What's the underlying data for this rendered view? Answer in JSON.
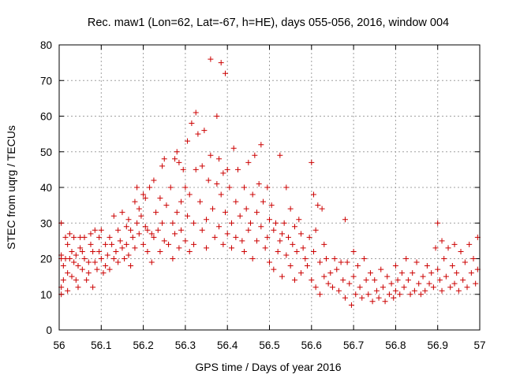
{
  "chart_data": {
    "type": "scatter",
    "title": "Rec. maw1 (Lon=62, Lat=-67, h=HE), days 055-056, 2016, window 004",
    "xlabel": "GPS time / Days of year 2016",
    "ylabel": "STEC from uqrg / TECUs",
    "xlim": [
      56,
      57
    ],
    "ylim": [
      0,
      80
    ],
    "x_ticks": [
      "56",
      "56.1",
      "56.2",
      "56.3",
      "56.4",
      "56.5",
      "56.6",
      "56.7",
      "56.8",
      "56.9",
      "57"
    ],
    "y_ticks": [
      "0",
      "10",
      "20",
      "30",
      "40",
      "50",
      "60",
      "70",
      "80"
    ],
    "grid": true,
    "legend": "none",
    "marker": "plus",
    "marker_color": "#cc0000",
    "series": [
      {
        "points": [
          [
            56.005,
            30
          ],
          [
            56.005,
            21
          ],
          [
            56.005,
            20
          ],
          [
            56.005,
            12
          ],
          [
            56.005,
            10
          ],
          [
            56.01,
            18
          ],
          [
            56.01,
            14
          ],
          [
            56.015,
            26
          ],
          [
            56.015,
            20
          ],
          [
            56.02,
            24
          ],
          [
            56.02,
            16
          ],
          [
            56.02,
            11
          ],
          [
            56.025,
            27
          ],
          [
            56.025,
            20
          ],
          [
            56.03,
            22
          ],
          [
            56.03,
            15
          ],
          [
            56.035,
            26
          ],
          [
            56.035,
            19
          ],
          [
            56.04,
            21
          ],
          [
            56.04,
            14
          ],
          [
            56.045,
            18
          ],
          [
            56.045,
            12
          ],
          [
            56.05,
            26
          ],
          [
            56.05,
            23
          ],
          [
            56.055,
            22
          ],
          [
            56.055,
            17
          ],
          [
            56.06,
            26
          ],
          [
            56.06,
            20
          ],
          [
            56.065,
            14
          ],
          [
            56.07,
            19
          ],
          [
            56.07,
            16
          ],
          [
            56.075,
            27
          ],
          [
            56.075,
            24
          ],
          [
            56.08,
            22
          ],
          [
            56.08,
            12
          ],
          [
            56.085,
            28
          ],
          [
            56.085,
            19
          ],
          [
            56.09,
            17
          ],
          [
            56.095,
            26
          ],
          [
            56.095,
            22
          ],
          [
            56.1,
            28
          ],
          [
            56.1,
            20
          ],
          [
            56.105,
            16
          ],
          [
            56.11,
            24
          ],
          [
            56.11,
            18
          ],
          [
            56.115,
            21
          ],
          [
            56.12,
            26
          ],
          [
            56.12,
            17
          ],
          [
            56.125,
            24
          ],
          [
            56.13,
            32
          ],
          [
            56.13,
            20
          ],
          [
            56.135,
            22
          ],
          [
            56.14,
            28
          ],
          [
            56.14,
            19
          ],
          [
            56.145,
            25
          ],
          [
            56.15,
            33
          ],
          [
            56.15,
            23
          ],
          [
            56.155,
            20
          ],
          [
            56.16,
            29
          ],
          [
            56.16,
            24
          ],
          [
            56.165,
            31
          ],
          [
            56.165,
            21
          ],
          [
            56.17,
            28
          ],
          [
            56.17,
            18
          ],
          [
            56.175,
            26
          ],
          [
            56.18,
            36
          ],
          [
            56.18,
            23
          ],
          [
            56.185,
            40
          ],
          [
            56.185,
            30
          ],
          [
            56.19,
            34
          ],
          [
            56.19,
            27
          ],
          [
            56.195,
            32
          ],
          [
            56.2,
            38
          ],
          [
            56.2,
            24
          ],
          [
            56.205,
            37
          ],
          [
            56.205,
            29
          ],
          [
            56.21,
            28
          ],
          [
            56.21,
            22
          ],
          [
            56.215,
            40
          ],
          [
            56.22,
            27
          ],
          [
            56.22,
            19
          ],
          [
            56.225,
            42
          ],
          [
            56.225,
            26
          ],
          [
            56.23,
            33
          ],
          [
            56.235,
            28
          ],
          [
            56.24,
            37
          ],
          [
            56.24,
            22
          ],
          [
            56.245,
            46
          ],
          [
            56.245,
            30
          ],
          [
            56.25,
            48
          ],
          [
            56.25,
            25
          ],
          [
            56.255,
            35
          ],
          [
            56.26,
            24
          ],
          [
            56.265,
            40
          ],
          [
            56.27,
            30
          ],
          [
            56.27,
            20
          ],
          [
            56.275,
            48
          ],
          [
            56.275,
            27
          ],
          [
            56.28,
            50
          ],
          [
            56.28,
            33
          ],
          [
            56.285,
            47
          ],
          [
            56.285,
            23
          ],
          [
            56.29,
            36
          ],
          [
            56.29,
            28
          ],
          [
            56.295,
            45
          ],
          [
            56.3,
            40
          ],
          [
            56.3,
            25
          ],
          [
            56.305,
            53
          ],
          [
            56.305,
            32
          ],
          [
            56.31,
            38
          ],
          [
            56.31,
            22
          ],
          [
            56.315,
            58
          ],
          [
            56.32,
            30
          ],
          [
            56.32,
            24
          ],
          [
            56.325,
            61
          ],
          [
            56.325,
            45
          ],
          [
            56.33,
            55
          ],
          [
            56.335,
            36
          ],
          [
            56.34,
            46
          ],
          [
            56.34,
            28
          ],
          [
            56.345,
            56
          ],
          [
            56.35,
            31
          ],
          [
            56.35,
            23
          ],
          [
            56.355,
            42
          ],
          [
            56.36,
            76
          ],
          [
            56.36,
            49
          ],
          [
            56.365,
            34
          ],
          [
            56.37,
            26
          ],
          [
            56.375,
            60
          ],
          [
            56.375,
            41
          ],
          [
            56.38,
            48
          ],
          [
            56.38,
            29
          ],
          [
            56.385,
            75
          ],
          [
            56.385,
            38
          ],
          [
            56.39,
            44
          ],
          [
            56.39,
            24
          ],
          [
            56.395,
            72
          ],
          [
            56.395,
            33
          ],
          [
            56.4,
            45
          ],
          [
            56.4,
            27
          ],
          [
            56.405,
            40
          ],
          [
            56.41,
            30
          ],
          [
            56.41,
            23
          ],
          [
            56.415,
            51
          ],
          [
            56.42,
            36
          ],
          [
            56.42,
            26
          ],
          [
            56.425,
            45
          ],
          [
            56.43,
            32
          ],
          [
            56.435,
            25
          ],
          [
            56.44,
            40
          ],
          [
            56.44,
            22
          ],
          [
            56.445,
            34
          ],
          [
            56.45,
            47
          ],
          [
            56.45,
            28
          ],
          [
            56.455,
            30
          ],
          [
            56.46,
            38
          ],
          [
            56.46,
            20
          ],
          [
            56.465,
            49
          ],
          [
            56.47,
            33
          ],
          [
            56.47,
            25
          ],
          [
            56.475,
            41
          ],
          [
            56.48,
            52
          ],
          [
            56.48,
            29
          ],
          [
            56.485,
            36
          ],
          [
            56.49,
            23
          ],
          [
            56.495,
            40
          ],
          [
            56.495,
            26
          ],
          [
            56.5,
            31
          ],
          [
            56.5,
            19
          ],
          [
            56.505,
            35
          ],
          [
            56.51,
            28
          ],
          [
            56.51,
            17
          ],
          [
            56.515,
            30
          ],
          [
            56.52,
            22
          ],
          [
            56.525,
            49
          ],
          [
            56.525,
            25
          ],
          [
            56.53,
            27
          ],
          [
            56.53,
            15
          ],
          [
            56.535,
            30
          ],
          [
            56.54,
            40
          ],
          [
            56.54,
            21
          ],
          [
            56.545,
            26
          ],
          [
            56.55,
            34
          ],
          [
            56.55,
            18
          ],
          [
            56.555,
            24
          ],
          [
            56.56,
            29
          ],
          [
            56.56,
            14
          ],
          [
            56.565,
            22
          ],
          [
            56.57,
            31
          ],
          [
            56.575,
            27
          ],
          [
            56.575,
            16
          ],
          [
            56.58,
            23
          ],
          [
            56.585,
            20
          ],
          [
            56.59,
            18
          ],
          [
            56.595,
            26
          ],
          [
            56.6,
            47
          ],
          [
            56.6,
            14
          ],
          [
            56.605,
            38
          ],
          [
            56.605,
            22
          ],
          [
            56.61,
            28
          ],
          [
            56.61,
            12
          ],
          [
            56.615,
            35
          ],
          [
            56.62,
            19
          ],
          [
            56.62,
            10
          ],
          [
            56.625,
            34
          ],
          [
            56.63,
            24
          ],
          [
            56.63,
            15
          ],
          [
            56.635,
            20
          ],
          [
            56.64,
            13
          ],
          [
            56.645,
            16
          ],
          [
            56.65,
            12
          ],
          [
            56.655,
            20
          ],
          [
            56.66,
            17
          ],
          [
            56.665,
            11
          ],
          [
            56.67,
            19
          ],
          [
            56.675,
            14
          ],
          [
            56.68,
            31
          ],
          [
            56.68,
            9
          ],
          [
            56.685,
            19
          ],
          [
            56.69,
            13
          ],
          [
            56.695,
            7
          ],
          [
            56.7,
            22
          ],
          [
            56.7,
            15
          ],
          [
            56.705,
            10
          ],
          [
            56.71,
            18
          ],
          [
            56.715,
            12
          ],
          [
            56.72,
            9
          ],
          [
            56.725,
            20
          ],
          [
            56.73,
            14
          ],
          [
            56.735,
            10
          ],
          [
            56.74,
            16
          ],
          [
            56.745,
            8
          ],
          [
            56.75,
            14
          ],
          [
            56.755,
            11
          ],
          [
            56.76,
            9
          ],
          [
            56.765,
            17
          ],
          [
            56.77,
            12
          ],
          [
            56.775,
            8
          ],
          [
            56.78,
            15
          ],
          [
            56.785,
            10
          ],
          [
            56.79,
            13
          ],
          [
            56.795,
            9
          ],
          [
            56.8,
            18
          ],
          [
            56.8,
            11
          ],
          [
            56.805,
            14
          ],
          [
            56.81,
            10
          ],
          [
            56.815,
            16
          ],
          [
            56.82,
            12
          ],
          [
            56.825,
            20
          ],
          [
            56.83,
            14
          ],
          [
            56.835,
            10
          ],
          [
            56.84,
            16
          ],
          [
            56.845,
            11
          ],
          [
            56.85,
            19
          ],
          [
            56.855,
            13
          ],
          [
            56.86,
            10
          ],
          [
            56.865,
            15
          ],
          [
            56.87,
            11
          ],
          [
            56.875,
            18
          ],
          [
            56.88,
            13
          ],
          [
            56.885,
            16
          ],
          [
            56.89,
            12
          ],
          [
            56.895,
            23
          ],
          [
            56.9,
            30
          ],
          [
            56.9,
            17
          ],
          [
            56.905,
            14
          ],
          [
            56.91,
            25
          ],
          [
            56.91,
            11
          ],
          [
            56.915,
            20
          ],
          [
            56.92,
            15
          ],
          [
            56.925,
            23
          ],
          [
            56.93,
            12
          ],
          [
            56.935,
            18
          ],
          [
            56.94,
            24
          ],
          [
            56.94,
            13
          ],
          [
            56.945,
            16
          ],
          [
            56.95,
            11
          ],
          [
            56.955,
            22
          ],
          [
            56.96,
            14
          ],
          [
            56.965,
            19
          ],
          [
            56.97,
            12
          ],
          [
            56.975,
            24
          ],
          [
            56.98,
            16
          ],
          [
            56.985,
            20
          ],
          [
            56.99,
            13
          ],
          [
            56.995,
            26
          ],
          [
            56.995,
            17
          ]
        ]
      }
    ]
  }
}
